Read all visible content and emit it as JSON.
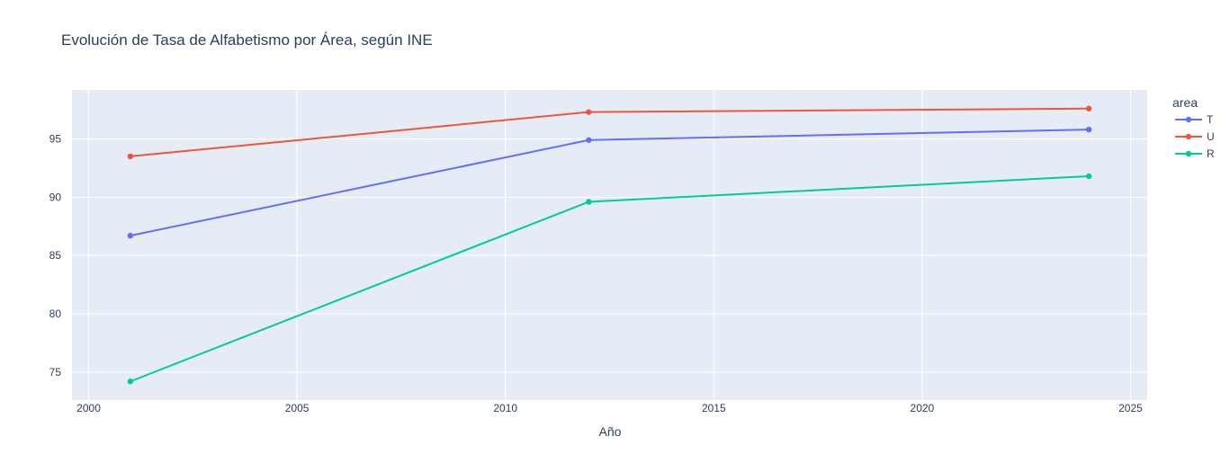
{
  "chart_data": {
    "type": "line",
    "title": "Evolución de Tasa de Alfabetismo por Área, según INE",
    "xlabel": "Año",
    "ylabel": "",
    "legend_title": "area",
    "legend_placement": "right",
    "grid": true,
    "xlim": [
      1999.6,
      2025.4
    ],
    "ylim": [
      72.6,
      99.2
    ],
    "xticks": [
      2000,
      2005,
      2010,
      2015,
      2020,
      2025
    ],
    "yticks": [
      75,
      80,
      85,
      90,
      95
    ],
    "x": [
      2001,
      2012,
      2024
    ],
    "series": [
      {
        "name": "T",
        "color": "#636efa",
        "values": [
          86.7,
          94.9,
          95.8
        ]
      },
      {
        "name": "U",
        "color": "#ef553b",
        "values": [
          93.5,
          97.3,
          97.6
        ]
      },
      {
        "name": "R",
        "color": "#00cc96",
        "values": [
          74.2,
          89.6,
          91.8
        ]
      }
    ],
    "plot_bg": "#e5ecf6",
    "grid_color": "#ffffff"
  }
}
